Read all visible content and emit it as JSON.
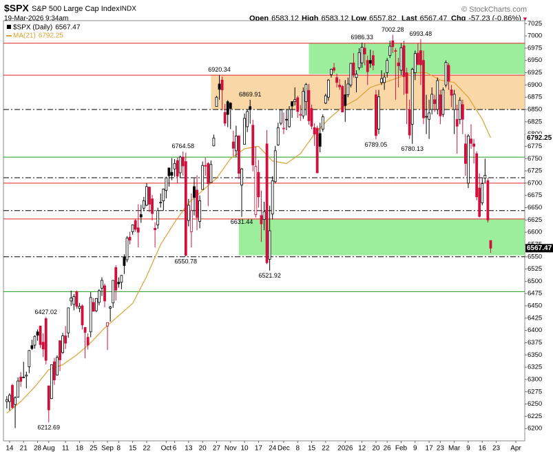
{
  "chart_data": {
    "type": "candlestick",
    "header": {
      "symbol": "$SPX",
      "name": "S&P 500 Large Cap Index",
      "exchange": "INDX",
      "timestamp": "19-Mar-2026 9:34am",
      "brand": "© StockCharts.com",
      "quote": [
        {
          "label": "Open",
          "value": "6583.12"
        },
        {
          "label": "High",
          "value": "6583.12"
        },
        {
          "label": "Low",
          "value": "6557.82"
        },
        {
          "label": "Last",
          "value": "6567.47"
        },
        {
          "label": "Chg",
          "value": "-57.23 (-0.86%)"
        }
      ],
      "arrow": "▼"
    },
    "series_name": "$SPX (Daily)",
    "up_color": "#000000",
    "down_color": "#d0103a",
    "ylim": [
      6175,
      7031
    ],
    "yticks": [
      6200,
      6225,
      6250,
      6275,
      6300,
      6325,
      6350,
      6375,
      6400,
      6425,
      6450,
      6475,
      6500,
      6525,
      6550,
      6575,
      6600,
      6625,
      6650,
      6675,
      6700,
      6725,
      6750,
      6775,
      6800,
      6825,
      6850,
      6875,
      6900,
      6925,
      6950,
      6975,
      7000,
      7025
    ],
    "xlim": [
      -1.2,
      185.2
    ],
    "xticks": [
      {
        "value": 1,
        "label": "14"
      },
      {
        "value": 6,
        "label": "21"
      },
      {
        "value": 11,
        "label": "28"
      },
      {
        "value": 15,
        "label": "Aug"
      },
      {
        "value": 21,
        "label": "11"
      },
      {
        "value": 26,
        "label": "18"
      },
      {
        "value": 31,
        "label": "25"
      },
      {
        "value": 36,
        "label": "Sep"
      },
      {
        "value": 40,
        "label": "8"
      },
      {
        "value": 45,
        "label": "15"
      },
      {
        "value": 50,
        "label": "22"
      },
      {
        "value": 57,
        "label": "Oct"
      },
      {
        "value": 60,
        "label": "6"
      },
      {
        "value": 65,
        "label": "13"
      },
      {
        "value": 70,
        "label": "20"
      },
      {
        "value": 75,
        "label": "27"
      },
      {
        "value": 80,
        "label": "Nov"
      },
      {
        "value": 85,
        "label": "10"
      },
      {
        "value": 90,
        "label": "17"
      },
      {
        "value": 95,
        "label": "24"
      },
      {
        "value": 99,
        "label": "Dec"
      },
      {
        "value": 104,
        "label": "8"
      },
      {
        "value": 109,
        "label": "15"
      },
      {
        "value": 114,
        "label": "22"
      },
      {
        "value": 121,
        "label": "2026"
      },
      {
        "value": 127,
        "label": "12"
      },
      {
        "value": 132,
        "label": "20"
      },
      {
        "value": 136,
        "label": "26"
      },
      {
        "value": 141,
        "label": "Feb"
      },
      {
        "value": 146,
        "label": "9"
      },
      {
        "value": 151,
        "label": "17"
      },
      {
        "value": 155,
        "label": "23"
      },
      {
        "value": 160,
        "label": "Mar"
      },
      {
        "value": 165,
        "label": "9"
      },
      {
        "value": 170,
        "label": "16"
      },
      {
        "value": 175,
        "label": "23"
      },
      {
        "value": 182,
        "label": "Apr"
      }
    ],
    "candles": [
      [
        6255,
        6266,
        6241,
        6259
      ],
      [
        6255,
        6272,
        6237,
        6268
      ],
      [
        6288,
        6291,
        6240,
        6243
      ],
      [
        6249,
        6266,
        6201,
        6263
      ],
      [
        6264,
        6304,
        6263,
        6297
      ],
      [
        6305,
        6315,
        6285,
        6296
      ],
      [
        6304,
        6336,
        6303,
        6305
      ],
      [
        6307,
        6316,
        6282,
        6309
      ],
      [
        6326,
        6360,
        6313,
        6359
      ],
      [
        6369,
        6381,
        6360,
        6363
      ],
      [
        6370,
        6390,
        6363,
        6388
      ],
      [
        6397,
        6402,
        6379,
        6390
      ],
      [
        6409,
        6409,
        6364,
        6371
      ],
      [
        6376,
        6394,
        6346,
        6362
      ],
      [
        6424,
        6427.02,
        6331,
        6339
      ],
      [
        6287,
        6288,
        6212.69,
        6238
      ],
      [
        6261,
        6330,
        6260,
        6330
      ],
      [
        6336,
        6344,
        6289,
        6299
      ],
      [
        6309,
        6349,
        6308,
        6345
      ],
      [
        6379,
        6380,
        6317,
        6340
      ],
      [
        6355,
        6395,
        6352,
        6389
      ],
      [
        6389,
        6409,
        6362,
        6374
      ],
      [
        6395,
        6446,
        6385,
        6446
      ],
      [
        6460,
        6481,
        6450,
        6466
      ],
      [
        6453,
        6474,
        6441,
        6469
      ],
      [
        6479,
        6481,
        6444,
        6449
      ],
      [
        6445,
        6456,
        6437,
        6449
      ],
      [
        6450,
        6453,
        6402,
        6411
      ],
      [
        6406,
        6407,
        6343,
        6396
      ],
      [
        6386,
        6394,
        6361,
        6370
      ],
      [
        6397,
        6478,
        6386,
        6467
      ],
      [
        6457,
        6466,
        6438,
        6439
      ],
      [
        6440,
        6466,
        6437,
        6465
      ],
      [
        6457,
        6484,
        6451,
        6481
      ],
      [
        6486,
        6508,
        6470,
        6502
      ],
      [
        6491,
        6495,
        6447,
        6460
      ],
      [
        6409,
        6416,
        6360,
        6416
      ],
      [
        6445,
        6450,
        6418,
        6448
      ],
      [
        6456,
        6502,
        6446,
        6502
      ],
      [
        6528,
        6533,
        6461,
        6482
      ],
      [
        6498,
        6508,
        6487,
        6495
      ],
      [
        6498,
        6513,
        6484,
        6512
      ],
      [
        6550,
        6555,
        6515,
        6532
      ],
      [
        6544,
        6592,
        6539,
        6588
      ],
      [
        6590,
        6601,
        6575,
        6584
      ],
      [
        6601,
        6616,
        6595,
        6615
      ],
      [
        6624,
        6627,
        6601,
        6606
      ],
      [
        6609,
        6657,
        6569,
        6600
      ],
      [
        6636,
        6656,
        6619,
        6631
      ],
      [
        6649,
        6672,
        6643,
        6664
      ],
      [
        6655,
        6700,
        6653,
        6693
      ],
      [
        6692,
        6693,
        6641,
        6657
      ],
      [
        6668,
        6676,
        6624,
        6638
      ],
      [
        6608,
        6620,
        6569,
        6605
      ],
      [
        6615,
        6650,
        6607,
        6644
      ],
      [
        6661,
        6679,
        6650,
        6661
      ],
      [
        6664,
        6689,
        6644,
        6688
      ],
      [
        6685,
        6713,
        6669,
        6711
      ],
      [
        6731,
        6731,
        6693,
        6715
      ],
      [
        6722,
        6751,
        6706,
        6716
      ],
      [
        6729,
        6749,
        6713,
        6740
      ],
      [
        6746,
        6752,
        6700,
        6714
      ],
      [
        6721,
        6756,
        6711,
        6753
      ],
      [
        6753,
        6764.58,
        6715,
        6735
      ],
      [
        6744,
        6762,
        6550.78,
        6553
      ],
      [
        6624,
        6668,
        6612,
        6655
      ],
      [
        6601,
        6679,
        6569,
        6644
      ],
      [
        6693,
        6710,
        6634,
        6671
      ],
      [
        6686,
        6716,
        6604,
        6630
      ],
      [
        6622,
        6675,
        6608,
        6664
      ],
      [
        6687,
        6744,
        6687,
        6736
      ],
      [
        6736,
        6752,
        6715,
        6735
      ],
      [
        6740,
        6743,
        6653,
        6699
      ],
      [
        6701,
        6746,
        6700,
        6738
      ],
      [
        6776,
        6799,
        6775,
        6792
      ],
      [
        6856,
        6878,
        6856,
        6875
      ],
      [
        6902,
        6920.34,
        6870,
        6891
      ],
      [
        6910,
        6917,
        6848,
        6890
      ],
      [
        6844,
        6861,
        6816,
        6822
      ],
      [
        6866,
        6869,
        6814,
        6840
      ],
      [
        6863,
        6865,
        6810,
        6852
      ],
      [
        6784,
        6807,
        6755,
        6771
      ],
      [
        6766,
        6817,
        6753,
        6796
      ],
      [
        6796,
        6798,
        6708,
        6720
      ],
      [
        6696,
        6731,
        6631.44,
        6729
      ],
      [
        6779,
        6842,
        6779,
        6832
      ],
      [
        6815,
        6849,
        6804,
        6846
      ],
      [
        6856,
        6869.91,
        6821,
        6850
      ],
      [
        6818,
        6829,
        6724,
        6737
      ],
      [
        6636,
        6775,
        6630,
        6734
      ],
      [
        6722,
        6747,
        6650,
        6672
      ],
      [
        6634,
        6685,
        6580,
        6617
      ],
      [
        6626,
        6662,
        6604,
        6642
      ],
      [
        6780,
        6808,
        6535,
        6538
      ],
      [
        6545,
        6654,
        6521.92,
        6603
      ],
      [
        6637,
        6714,
        6626,
        6705
      ],
      [
        6703,
        6776,
        6700,
        6766
      ],
      [
        6778,
        6823,
        6776,
        6813
      ],
      [
        6822,
        6850,
        6818,
        6849
      ],
      [
        6812,
        6844,
        6800,
        6812
      ],
      [
        6830,
        6851,
        6808,
        6829
      ],
      [
        6815,
        6857,
        6813,
        6850
      ],
      [
        6866,
        6867,
        6833,
        6857
      ],
      [
        6866,
        6895,
        6858,
        6870
      ],
      [
        6874,
        6878,
        6833,
        6846
      ],
      [
        6839,
        6859,
        6827,
        6840
      ],
      [
        6837,
        6895,
        6831,
        6887
      ],
      [
        6866,
        6904,
        6838,
        6901
      ],
      [
        6889,
        6902,
        6819,
        6827
      ],
      [
        6852,
        6860,
        6810,
        6816
      ],
      [
        6813,
        6822,
        6776,
        6800
      ],
      [
        6812,
        6817,
        6720,
        6721
      ],
      [
        6801,
        6823,
        6763,
        6775
      ],
      [
        6810,
        6840,
        6805,
        6835
      ],
      [
        6863,
        6882,
        6861,
        6878
      ],
      [
        6875,
        6912,
        6868,
        6910
      ],
      [
        6921,
        6933,
        6915,
        6932
      ],
      [
        6935,
        6945,
        6925,
        6930
      ],
      [
        6915,
        6923,
        6895,
        6905
      ],
      [
        6900,
        6912,
        6890,
        6896
      ],
      [
        6897,
        6900,
        6844,
        6845
      ],
      [
        6880,
        6910,
        6825,
        6858
      ],
      [
        6880,
        6915,
        6875,
        6902
      ],
      [
        6900,
        6945,
        6895,
        6944
      ],
      [
        6945,
        6965,
        6915,
        6921
      ],
      [
        6915,
        6930,
        6885,
        6922
      ],
      [
        6935,
        6975,
        6930,
        6966
      ],
      [
        6945,
        6986.33,
        6935,
        6977
      ],
      [
        6975,
        6985,
        6940,
        6963
      ],
      [
        6950,
        6960,
        6900,
        6927
      ],
      [
        6950,
        6972,
        6935,
        6944
      ],
      [
        6960,
        6970,
        6930,
        6940
      ],
      [
        6880,
        6890,
        6789.05,
        6797
      ],
      [
        6810,
        6890,
        6800,
        6876
      ],
      [
        6905,
        6930,
        6900,
        6913
      ],
      [
        6905,
        6925,
        6890,
        6916
      ],
      [
        6925,
        6955,
        6915,
        6950
      ],
      [
        6960,
        6990,
        6955,
        6979
      ],
      [
        6990,
        7002.28,
        6965,
        6978
      ],
      [
        6970,
        6975,
        6870,
        6969
      ],
      [
        6945,
        6955,
        6895,
        6939
      ],
      [
        6930,
        6985,
        6920,
        6976
      ],
      [
        6980,
        6990,
        6880,
        6917
      ],
      [
        6925,
        6935,
        6820,
        6883
      ],
      [
        6850,
        6870,
        6790,
        6798
      ],
      [
        6820,
        6935,
        6780.13,
        6932
      ],
      [
        6925,
        6970,
        6910,
        6964
      ],
      [
        6965,
        6985,
        6940,
        6942
      ],
      [
        6970,
        6993.48,
        6900,
        6941
      ],
      [
        6950,
        6970,
        6820,
        6833
      ],
      [
        6835,
        6880,
        6800,
        6836
      ],
      [
        6830,
        6870,
        6790,
        6843
      ],
      [
        6850,
        6895,
        6840,
        6881
      ],
      [
        6870,
        6880,
        6845,
        6862
      ],
      [
        6850,
        6915,
        6840,
        6909
      ],
      [
        6880,
        6890,
        6820,
        6837
      ],
      [
        6840,
        6895,
        6835,
        6890
      ],
      [
        6900,
        6950,
        6895,
        6946
      ],
      [
        6940,
        6945,
        6890,
        6908
      ],
      [
        6890,
        6900,
        6855,
        6879
      ],
      [
        6850,
        6890,
        6800,
        6881
      ],
      [
        6830,
        6860,
        6760,
        6816
      ],
      [
        6830,
        6875,
        6820,
        6869
      ],
      [
        6860,
        6870,
        6800,
        6830
      ],
      [
        6780,
        6800,
        6715,
        6740
      ],
      [
        6700,
        6800,
        6690,
        6796
      ],
      [
        6790,
        6820,
        6770,
        6781
      ],
      [
        6780,
        6790,
        6740,
        6775
      ],
      [
        6760,
        6765,
        6665,
        6672
      ],
      [
        6690,
        6720,
        6630,
        6632
      ],
      [
        6660,
        6710,
        6655,
        6699
      ],
      [
        6710,
        6750,
        6700,
        6716
      ],
      [
        6705,
        6710,
        6620,
        6624.7
      ],
      [
        6583.12,
        6583.12,
        6557.82,
        6567.47
      ]
    ],
    "ma": {
      "name": "MA(21)",
      "color": "#e0a030",
      "x": [
        0,
        5,
        10,
        15,
        20,
        25,
        30,
        35,
        40,
        45,
        50,
        55,
        60,
        65,
        70,
        75,
        80,
        85,
        90,
        95,
        100,
        105,
        110,
        115,
        120,
        125,
        130,
        135,
        140,
        145,
        150,
        155,
        160,
        165,
        170,
        173
      ],
      "values": [
        6231,
        6255,
        6285,
        6320,
        6330,
        6350,
        6375,
        6405,
        6430,
        6455,
        6510,
        6575,
        6620,
        6660,
        6685,
        6710,
        6750,
        6770,
        6775,
        6745,
        6740,
        6760,
        6800,
        6830,
        6855,
        6870,
        6895,
        6905,
        6915,
        6925,
        6925,
        6910,
        6905,
        6875,
        6830,
        6792.25
      ]
    },
    "zones": [
      {
        "x0": 108,
        "y0": 6922,
        "y1": 6985,
        "color": "#7be87b"
      },
      {
        "x0": 73,
        "y0": 6850,
        "y1": 6920,
        "color": "#f7c98a"
      },
      {
        "x0": 83,
        "y0": 6553,
        "y1": 6627,
        "color": "#7be87b"
      }
    ],
    "levels": [
      {
        "value": 6985,
        "color": "#e02020",
        "style": "solid"
      },
      {
        "value": 6920,
        "color": "#e02020",
        "style": "solid"
      },
      {
        "value": 6850,
        "color": "#000000",
        "style": "dashdot"
      },
      {
        "value": 6753,
        "color": "#1a9a1a",
        "style": "solid"
      },
      {
        "value": 6711,
        "color": "#000000",
        "style": "dashdot"
      },
      {
        "value": 6700,
        "color": "#e02020",
        "style": "solid"
      },
      {
        "value": 6644,
        "color": "#000000",
        "style": "dashdot"
      },
      {
        "value": 6627,
        "color": "#e02020",
        "style": "solid"
      },
      {
        "value": 6550,
        "color": "#000000",
        "style": "dashdot"
      },
      {
        "value": 6479,
        "color": "#1a9a1a",
        "style": "solid"
      }
    ],
    "annotations": [
      {
        "x": 14,
        "value": 6427.02
      },
      {
        "x": 15,
        "value": 6212.69
      },
      {
        "x": 63,
        "value": 6764.58
      },
      {
        "x": 64,
        "value": 6550.78
      },
      {
        "x": 76,
        "value": 6920.34
      },
      {
        "x": 87,
        "value": 6869.91
      },
      {
        "x": 84,
        "value": 6631.44
      },
      {
        "x": 94,
        "value": 6521.92
      },
      {
        "x": 127,
        "value": 6986.33
      },
      {
        "x": 138,
        "value": 7002.28
      },
      {
        "x": 148,
        "value": 6993.48
      },
      {
        "x": 132,
        "value": 6789.05
      },
      {
        "x": 145,
        "value": 6780.13
      }
    ]
  }
}
